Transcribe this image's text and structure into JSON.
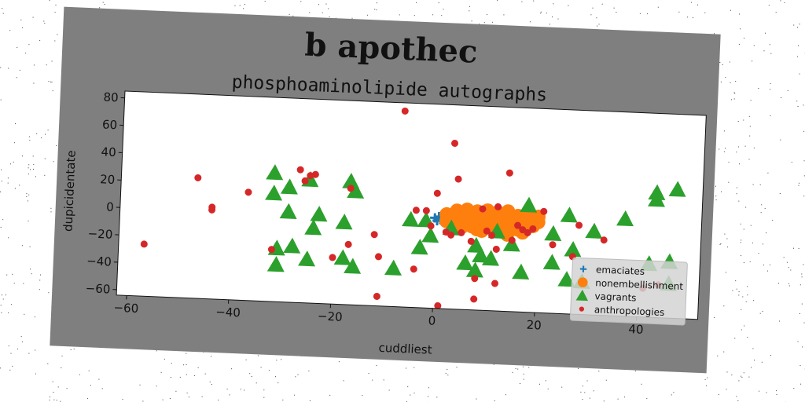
{
  "chart_data": {
    "type": "scatter",
    "title": "b apothec",
    "subtitle": "phosphoaminolipide autographs",
    "xlabel": "cuddliest",
    "ylabel": "dupicidentate",
    "xlim": [
      -62,
      52
    ],
    "ylim": [
      -64,
      85
    ],
    "xticks": [
      -60,
      -40,
      -20,
      0,
      20,
      40
    ],
    "yticks": [
      -60,
      -40,
      -20,
      0,
      20,
      40,
      60,
      80
    ],
    "legend_position": "lower-right",
    "series": [
      {
        "name": "emaciates",
        "marker": "plus",
        "color": "#1f77b4",
        "points": [
          [
            -0.3,
            2
          ],
          [
            0.2,
            0
          ],
          [
            0.5,
            3
          ],
          [
            0.8,
            1
          ]
        ]
      },
      {
        "name": "nonembellishment",
        "marker": "circle",
        "color": "#ff7f0e",
        "points": [
          [
            2,
            5
          ],
          [
            3,
            3
          ],
          [
            4,
            8
          ],
          [
            5,
            2
          ],
          [
            6,
            6
          ],
          [
            7,
            1
          ],
          [
            8,
            4
          ],
          [
            9,
            7
          ],
          [
            10,
            3
          ],
          [
            11,
            5
          ],
          [
            12,
            1
          ],
          [
            13,
            6
          ],
          [
            14,
            2
          ],
          [
            15,
            4
          ],
          [
            16,
            0
          ],
          [
            17,
            3
          ],
          [
            18,
            -2
          ],
          [
            19,
            5
          ],
          [
            20,
            2
          ],
          [
            3,
            -2
          ],
          [
            5,
            -4
          ],
          [
            7,
            -3
          ],
          [
            9,
            -6
          ],
          [
            11,
            -2
          ],
          [
            13,
            -5
          ],
          [
            15,
            -3
          ],
          [
            17,
            -6
          ],
          [
            19,
            -1
          ],
          [
            2,
            0
          ],
          [
            4,
            -1
          ],
          [
            6,
            9
          ],
          [
            8,
            8
          ],
          [
            10,
            9
          ],
          [
            12,
            8
          ],
          [
            14,
            9
          ],
          [
            16,
            6
          ],
          [
            18,
            7
          ],
          [
            20,
            6
          ],
          [
            11,
            0
          ],
          [
            13,
            -1
          ],
          [
            6,
            -1
          ],
          [
            8,
            -5
          ],
          [
            10,
            6
          ],
          [
            12,
            4
          ],
          [
            16,
            -4
          ],
          [
            18,
            1
          ],
          [
            14,
            -8
          ],
          [
            9,
            1
          ]
        ]
      },
      {
        "name": "vagrants",
        "marker": "triangle",
        "color": "#2ca02c",
        "points": [
          [
            -32,
            30
          ],
          [
            -29,
            20
          ],
          [
            -25,
            26
          ],
          [
            -32,
            15
          ],
          [
            -29,
            2
          ],
          [
            -24,
            -9
          ],
          [
            -23,
            1
          ],
          [
            -17,
            26
          ],
          [
            -16,
            19
          ],
          [
            -18,
            -4
          ],
          [
            -31,
            -25
          ],
          [
            -28,
            -23
          ],
          [
            -25,
            -32
          ],
          [
            -31,
            -37
          ],
          [
            -18,
            -30
          ],
          [
            -16,
            -36
          ],
          [
            -8,
            -36
          ],
          [
            -5,
            0
          ],
          [
            -2,
            0
          ],
          [
            -3,
            -20
          ],
          [
            -1,
            -11
          ],
          [
            3,
            -5
          ],
          [
            6,
            -30
          ],
          [
            8,
            -35
          ],
          [
            8,
            -17
          ],
          [
            9,
            -24
          ],
          [
            11,
            -26
          ],
          [
            12,
            -6
          ],
          [
            17,
            -35
          ],
          [
            18,
            14
          ],
          [
            23,
            -6
          ],
          [
            23,
            -27
          ],
          [
            26,
            -39
          ],
          [
            27,
            -17
          ],
          [
            29,
            -40
          ],
          [
            26,
            8
          ],
          [
            31,
            -3
          ],
          [
            37,
            7
          ],
          [
            42,
            -25
          ],
          [
            46,
            -23
          ],
          [
            46,
            -39
          ],
          [
            43,
            27
          ],
          [
            47,
            30
          ],
          [
            43,
            22
          ],
          [
            15,
            -15
          ]
        ]
      },
      {
        "name": "anthropologies",
        "marker": "dot",
        "color": "#d62728",
        "points": [
          [
            -57,
            -26
          ],
          [
            -47,
            24
          ],
          [
            -44,
            3
          ],
          [
            -44,
            1
          ],
          [
            -37,
            15
          ],
          [
            -32,
            -26
          ],
          [
            -27,
            33
          ],
          [
            -26,
            25
          ],
          [
            -25,
            29
          ],
          [
            -24,
            30
          ],
          [
            -20,
            -30
          ],
          [
            -17,
            -20
          ],
          [
            -17,
            21
          ],
          [
            -12,
            -12
          ],
          [
            -11,
            -28
          ],
          [
            -11,
            -57
          ],
          [
            -7,
            79
          ],
          [
            -4,
            -36
          ],
          [
            -4,
            7
          ],
          [
            -2,
            7
          ],
          [
            -1,
            -4
          ],
          [
            0,
            20
          ],
          [
            1,
            -62
          ],
          [
            2,
            -8
          ],
          [
            3,
            57
          ],
          [
            4,
            31
          ],
          [
            3,
            -10
          ],
          [
            5,
            -8
          ],
          [
            7,
            -14
          ],
          [
            8,
            -41
          ],
          [
            8,
            -56
          ],
          [
            9,
            10
          ],
          [
            10,
            -6
          ],
          [
            11,
            -9
          ],
          [
            12,
            -19
          ],
          [
            12,
            -44
          ],
          [
            12,
            12
          ],
          [
            14,
            37
          ],
          [
            15,
            -12
          ],
          [
            16,
            -1
          ],
          [
            17,
            -4
          ],
          [
            18,
            -6
          ],
          [
            19,
            -3
          ],
          [
            21,
            10
          ],
          [
            23,
            -14
          ],
          [
            27,
            -22
          ],
          [
            28,
            1
          ],
          [
            33,
            -9
          ],
          [
            41,
            -43
          ],
          [
            44,
            -40
          ]
        ]
      }
    ]
  }
}
